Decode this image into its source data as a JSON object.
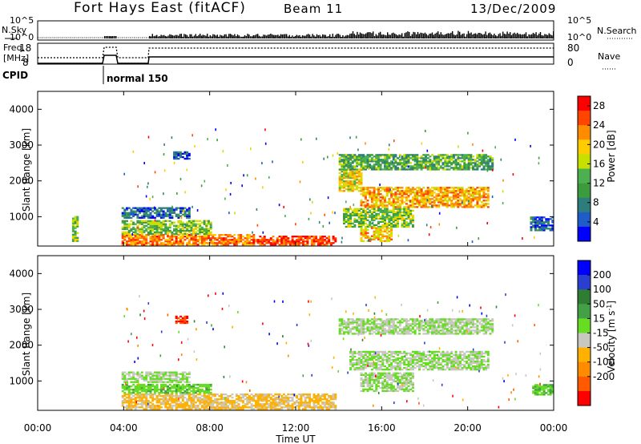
{
  "header": {
    "title": "Fort Hays East (fitACF)",
    "beam": "Beam 11",
    "date": "13/Dec/2009"
  },
  "top_panel": {
    "left_label": "N.Sky",
    "right_label": "N.Search",
    "left_ticks": [
      "10^5",
      "10^0"
    ],
    "right_ticks": [
      "10^5",
      "10^0"
    ]
  },
  "freq_panel": {
    "left_label_line1": "Freq.",
    "left_label_line2": "[MHz]",
    "left_ticks": [
      "18",
      "8"
    ],
    "right_label": "Nave",
    "right_ticks": [
      "80",
      "0"
    ]
  },
  "cpid": {
    "label": "CPID",
    "program": "normal 150"
  },
  "x_axis": {
    "label": "Time UT",
    "ticks": [
      "00:00",
      "04:00",
      "08:00",
      "12:00",
      "16:00",
      "20:00",
      "00:00"
    ]
  },
  "colors": {
    "power": [
      "#0000ff",
      "#1f5cc8",
      "#2e7d7d",
      "#3c9b3c",
      "#4caf50",
      "#c8e000",
      "#ffcc00",
      "#ff8c00",
      "#ff4500",
      "#ff0000"
    ],
    "velocity": [
      "#0000ff",
      "#2a3fd0",
      "#2e7d32",
      "#43a047",
      "#66dd22",
      "#c8c8c0",
      "#ffb000",
      "#ff8c00",
      "#ff5a00",
      "#ff0000"
    ],
    "ground_scatter": "#c8c8c0"
  },
  "chart_data": [
    {
      "type": "heatmap",
      "name": "power",
      "ylabel": "Slant Range [km]",
      "xlabel": "Time UT",
      "xlim_hours": [
        0,
        24
      ],
      "ylim": [
        180,
        4500
      ],
      "y_ticks": [
        "1000",
        "2000",
        "3000",
        "4000"
      ],
      "colorbar_label": "Power [dB]",
      "colorbar_ticks": [
        "4",
        "8",
        "12",
        "16",
        "20",
        "24",
        "28"
      ],
      "colorbar_range": [
        0,
        30
      ],
      "regions": [
        {
          "t0": 3.9,
          "t1": 10.0,
          "r0": 200,
          "r1": 500,
          "level": 23
        },
        {
          "t0": 10.0,
          "t1": 13.8,
          "r0": 200,
          "r1": 450,
          "level": 26
        },
        {
          "t0": 3.9,
          "t1": 8.0,
          "r0": 500,
          "r1": 900,
          "level": 14
        },
        {
          "t0": 3.9,
          "t1": 7.0,
          "r0": 950,
          "r1": 1250,
          "level": 6
        },
        {
          "t0": 6.3,
          "t1": 7.0,
          "r0": 2600,
          "r1": 2800,
          "level": 6
        },
        {
          "t0": 14.0,
          "t1": 15.0,
          "r0": 1700,
          "r1": 2300,
          "level": 18
        },
        {
          "t0": 14.0,
          "t1": 21.2,
          "r0": 2300,
          "r1": 2750,
          "level": 12
        },
        {
          "t0": 15.0,
          "t1": 21.0,
          "r0": 1250,
          "r1": 1800,
          "level": 21
        },
        {
          "t0": 14.2,
          "t1": 17.5,
          "r0": 700,
          "r1": 1200,
          "level": 14
        },
        {
          "t0": 15.0,
          "t1": 16.5,
          "r0": 300,
          "r1": 700,
          "level": 20
        },
        {
          "t0": 22.9,
          "t1": 24.0,
          "r0": 600,
          "r1": 1000,
          "level": 6
        },
        {
          "t0": 1.6,
          "t1": 1.9,
          "r0": 300,
          "r1": 1000,
          "level": 14
        }
      ]
    },
    {
      "type": "heatmap",
      "name": "velocity",
      "ylabel": "Slant Range [km]",
      "xlabel": "Time UT",
      "xlim_hours": [
        0,
        24
      ],
      "ylim": [
        180,
        4500
      ],
      "y_ticks": [
        "1000",
        "2000",
        "3000",
        "4000"
      ],
      "colorbar_label": "Velocity [m s^-1]",
      "colorbar_ticks": [
        "200",
        "100",
        "50",
        "15",
        "-15",
        "-50",
        "-100",
        "-200"
      ],
      "colorbar_range": [
        -250,
        250
      ],
      "regions": [
        {
          "t0": 3.9,
          "t1": 13.8,
          "r0": 200,
          "r1": 650,
          "level": -60
        },
        {
          "t0": 3.9,
          "t1": 8.0,
          "r0": 650,
          "r1": 900,
          "level": 30
        },
        {
          "t0": 3.9,
          "t1": 7.0,
          "r0": 950,
          "r1": 1250,
          "level": 0
        },
        {
          "t0": 6.4,
          "t1": 6.9,
          "r0": 2600,
          "r1": 2800,
          "level": -200
        },
        {
          "t0": 14.0,
          "t1": 21.2,
          "r0": 2300,
          "r1": 2750,
          "level": 0
        },
        {
          "t0": 14.5,
          "t1": 21.0,
          "r0": 1300,
          "r1": 1800,
          "level": 0
        },
        {
          "t0": 15.0,
          "t1": 17.5,
          "r0": 700,
          "r1": 1200,
          "level": 0
        },
        {
          "t0": 23.0,
          "t1": 24.0,
          "r0": 600,
          "r1": 900,
          "level": 40
        }
      ]
    }
  ]
}
